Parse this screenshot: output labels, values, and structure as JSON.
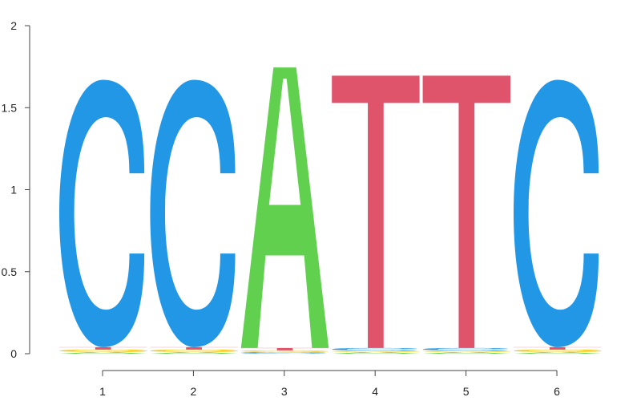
{
  "chart_data": {
    "type": "sequence-logo",
    "title": "",
    "xlabel": "",
    "ylabel": "",
    "ylim": [
      0,
      2
    ],
    "y_ticks": [
      "0",
      "0.5",
      "1",
      "1.5",
      "2"
    ],
    "x_ticks": [
      "1",
      "2",
      "3",
      "4",
      "5",
      "6"
    ],
    "letter_colors": {
      "A": "#61D04F",
      "C": "#2297E6",
      "G": "#F5C710",
      "T": "#DF536B"
    },
    "positions": [
      {
        "position": "1",
        "dominant": "C",
        "height": 1.63,
        "minor": {
          "A": 0.01,
          "G": 0.015,
          "T": 0.015
        }
      },
      {
        "position": "2",
        "dominant": "C",
        "height": 1.63,
        "minor": {
          "A": 0.01,
          "G": 0.015,
          "T": 0.015
        }
      },
      {
        "position": "3",
        "dominant": "A",
        "height": 1.71,
        "minor": {
          "C": 0.01,
          "G": 0.01,
          "T": 0.015
        }
      },
      {
        "position": "4",
        "dominant": "T",
        "height": 1.66,
        "minor": {
          "A": 0.01,
          "C": 0.015,
          "G": 0.01
        }
      },
      {
        "position": "5",
        "dominant": "T",
        "height": 1.66,
        "minor": {
          "A": 0.01,
          "C": 0.015,
          "G": 0.01
        }
      },
      {
        "position": "6",
        "dominant": "C",
        "height": 1.63,
        "minor": {
          "A": 0.01,
          "G": 0.015,
          "T": 0.015
        }
      }
    ]
  }
}
